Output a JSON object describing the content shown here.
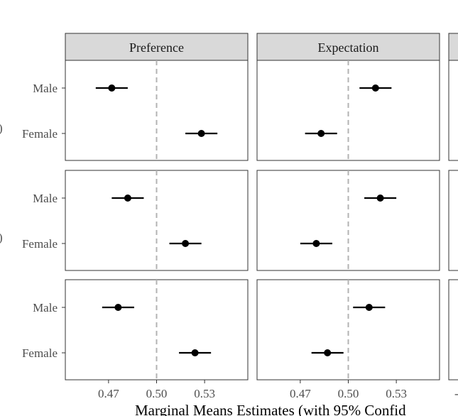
{
  "chart_data": {
    "type": "scatter",
    "subtype": "point-range (dot and 95% CI whisker)",
    "facets": {
      "columns": [
        "Preference",
        "Expectation",
        ""
      ],
      "rows": 3
    },
    "categories": [
      "Male",
      "Female"
    ],
    "xlabel": "Marginal Means Estimates (with 95% Confid",
    "xlim": [
      0.443,
      0.557
    ],
    "xticks": [
      0.47,
      0.5,
      0.53
    ],
    "xtick_labels": [
      "0.47",
      "0.50",
      "0.53"
    ],
    "reference_line": 0.5,
    "panels": [
      {
        "row": 0,
        "col": 0,
        "points": [
          {
            "category": "Male",
            "estimate": 0.472,
            "low": 0.462,
            "high": 0.482
          },
          {
            "category": "Female",
            "estimate": 0.528,
            "low": 0.518,
            "high": 0.538
          }
        ]
      },
      {
        "row": 0,
        "col": 1,
        "points": [
          {
            "category": "Male",
            "estimate": 0.517,
            "low": 0.507,
            "high": 0.527
          },
          {
            "category": "Female",
            "estimate": 0.483,
            "low": 0.473,
            "high": 0.493
          }
        ]
      },
      {
        "row": 1,
        "col": 0,
        "points": [
          {
            "category": "Male",
            "estimate": 0.482,
            "low": 0.472,
            "high": 0.492
          },
          {
            "category": "Female",
            "estimate": 0.518,
            "low": 0.508,
            "high": 0.528
          }
        ]
      },
      {
        "row": 1,
        "col": 1,
        "points": [
          {
            "category": "Male",
            "estimate": 0.52,
            "low": 0.51,
            "high": 0.53
          },
          {
            "category": "Female",
            "estimate": 0.48,
            "low": 0.47,
            "high": 0.49
          }
        ]
      },
      {
        "row": 2,
        "col": 0,
        "points": [
          {
            "category": "Male",
            "estimate": 0.476,
            "low": 0.466,
            "high": 0.486
          },
          {
            "category": "Female",
            "estimate": 0.524,
            "low": 0.514,
            "high": 0.534
          }
        ]
      },
      {
        "row": 2,
        "col": 1,
        "points": [
          {
            "category": "Male",
            "estimate": 0.513,
            "low": 0.503,
            "high": 0.523
          },
          {
            "category": "Female",
            "estimate": 0.487,
            "low": 0.477,
            "high": 0.497
          }
        ]
      }
    ],
    "left_edge_row_labels": [
      ")",
      ")"
    ],
    "right_edge_tick_label": "-",
    "grid": false,
    "legend": "none",
    "colors": {
      "point": "#000000",
      "reference_line": "#b3b3b3",
      "strip_fill": "#d9d9d9",
      "panel_border": "#333333",
      "tick_text": "#4d4d4d"
    }
  }
}
